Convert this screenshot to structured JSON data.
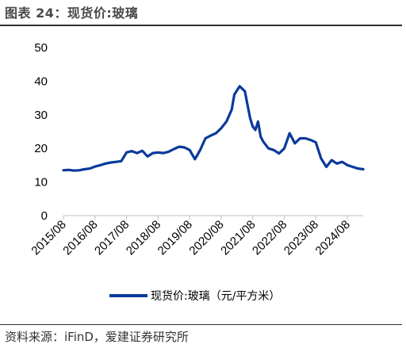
{
  "figure": {
    "title": "图表 24：现货价:玻璃",
    "source": "资料来源：iFinD，爱建证券研究所"
  },
  "colors": {
    "series": "#0a3a9a"
  },
  "chart_data": {
    "type": "line",
    "title": "",
    "xlabel": "",
    "ylabel": "",
    "ylim": [
      0,
      50
    ],
    "yticks": [
      0,
      10,
      20,
      30,
      40,
      50
    ],
    "xticks": [
      "2015/08",
      "2016/08",
      "2017/08",
      "2018/08",
      "2019/08",
      "2020/08",
      "2021/08",
      "2022/08",
      "2023/08",
      "2024/08"
    ],
    "xlim": [
      "2015/08",
      "2025/02"
    ],
    "grid": false,
    "legend": "bottom-center",
    "series": [
      {
        "name": "现货价:玻璃（元/平方米）",
        "x": [
          "2015/08",
          "2015/10",
          "2015/12",
          "2016/02",
          "2016/04",
          "2016/06",
          "2016/08",
          "2016/10",
          "2016/12",
          "2017/02",
          "2017/04",
          "2017/06",
          "2017/08",
          "2017/10",
          "2017/12",
          "2018/02",
          "2018/04",
          "2018/06",
          "2018/08",
          "2018/10",
          "2018/12",
          "2019/02",
          "2019/04",
          "2019/06",
          "2019/08",
          "2019/10",
          "2019/12",
          "2020/02",
          "2020/04",
          "2020/06",
          "2020/08",
          "2020/10",
          "2020/12",
          "2021/01",
          "2021/03",
          "2021/05",
          "2021/07",
          "2021/08",
          "2021/09",
          "2021/10",
          "2021/11",
          "2021/12",
          "2022/02",
          "2022/04",
          "2022/06",
          "2022/08",
          "2022/10",
          "2022/12",
          "2023/02",
          "2023/04",
          "2023/06",
          "2023/08",
          "2023/10",
          "2023/12",
          "2024/02",
          "2024/04",
          "2024/06",
          "2024/08",
          "2024/10",
          "2024/12",
          "2025/02"
        ],
        "values": [
          13.5,
          13.6,
          13.4,
          13.5,
          13.8,
          14.0,
          14.6,
          15.0,
          15.5,
          15.8,
          16.0,
          16.2,
          18.8,
          19.2,
          18.6,
          19.3,
          17.6,
          18.6,
          18.8,
          18.6,
          19.0,
          19.8,
          20.5,
          20.3,
          19.5,
          16.8,
          19.5,
          23.0,
          23.8,
          24.5,
          26.0,
          28.0,
          31.5,
          36.0,
          38.5,
          37.0,
          29.0,
          26.5,
          25.5,
          28.0,
          23.5,
          22.0,
          20.0,
          19.5,
          18.5,
          20.0,
          24.5,
          21.5,
          23.0,
          23.0,
          22.5,
          21.8,
          17.0,
          14.5,
          16.5,
          15.5,
          16.0,
          15.0,
          14.5,
          14.0,
          13.8
        ]
      }
    ]
  }
}
